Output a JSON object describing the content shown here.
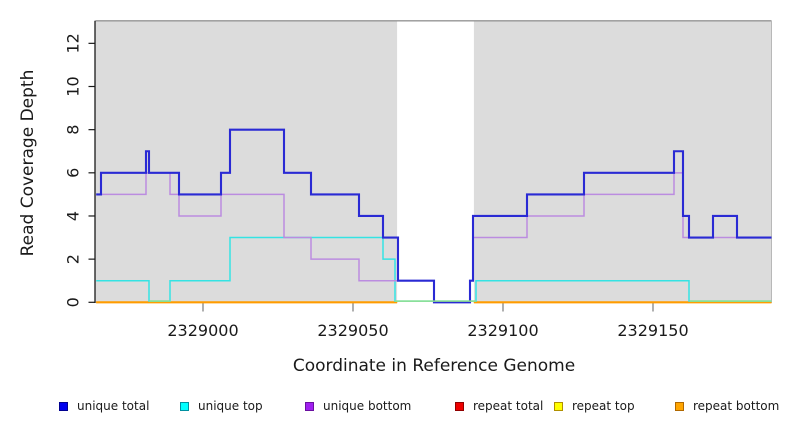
{
  "chart_data": {
    "type": "line",
    "subtype": "step-coverage-plot",
    "title": "",
    "xlabel": "Coordinate in Reference Genome",
    "ylabel": "Read Coverage Depth",
    "xlim": [
      2328964,
      2329190.7
    ],
    "ylim": [
      0,
      13
    ],
    "grid": false,
    "plot_background": "#dcdcdc",
    "top_border_color": "#949494",
    "right_border_color": "#b8b8b8",
    "axis_color": "#1a1a1a",
    "x_tick_color": "#7a7a7a",
    "x_ticks": [
      2329000,
      2329050,
      2329100,
      2329150
    ],
    "x_tick_labels": [
      "2329000",
      "2329050",
      "2329100",
      "2329150"
    ],
    "y_ticks": [
      0,
      2,
      4,
      6,
      8,
      10,
      12
    ],
    "y_tick_labels": [
      "0",
      "2",
      "4",
      "6",
      "8",
      "10",
      "12"
    ],
    "gap_region": {
      "start": 2329064.7,
      "end": 2329090.3,
      "color": "#ffffff"
    },
    "zero_overlap_color": "#8fdf8f",
    "zero_overlap_segments": [
      [
        2328982,
        2328989.2
      ],
      [
        2329064,
        2329091
      ],
      [
        2329162.1,
        2329190.7
      ]
    ],
    "series": [
      {
        "name": "repeat total",
        "color": "#dd0000",
        "width": 1.5,
        "hidden_in_gap": true,
        "steps": [
          [
            2328964,
            0
          ],
          [
            2329190.7,
            0
          ]
        ]
      },
      {
        "name": "repeat top",
        "color": "#f2f200",
        "width": 1.5,
        "hidden_in_gap": true,
        "steps": [
          [
            2328964,
            0
          ],
          [
            2329190.7,
            0
          ]
        ]
      },
      {
        "name": "repeat bottom",
        "color": "#ff9c00",
        "width": 2.2,
        "hidden_in_gap": true,
        "steps": [
          [
            2328964,
            0
          ],
          [
            2329190.7,
            0
          ]
        ]
      },
      {
        "name": "unique top",
        "color": "#35e3e3",
        "width": 1.5,
        "zero_lift": true,
        "steps": [
          [
            2328964,
            1
          ],
          [
            2328982,
            0
          ],
          [
            2328989,
            1
          ],
          [
            2329009,
            3
          ],
          [
            2329060,
            2
          ],
          [
            2329064,
            0
          ],
          [
            2329091,
            1
          ],
          [
            2329162,
            0
          ],
          [
            2329190.7,
            0
          ]
        ]
      },
      {
        "name": "unique bottom",
        "color": "#bb8ce0",
        "width": 1.5,
        "steps": [
          [
            2328964,
            5
          ],
          [
            2328981,
            6
          ],
          [
            2328989,
            5
          ],
          [
            2328992,
            4
          ],
          [
            2329006,
            5
          ],
          [
            2329027,
            3
          ],
          [
            2329036,
            2
          ],
          [
            2329052,
            1
          ],
          [
            2329077,
            0
          ],
          [
            2329089,
            1
          ],
          [
            2329090,
            3
          ],
          [
            2329108,
            4
          ],
          [
            2329127,
            5
          ],
          [
            2329157,
            6
          ],
          [
            2329160,
            3
          ],
          [
            2329190.7,
            3
          ]
        ]
      },
      {
        "name": "unique total",
        "color": "#2a2ad4",
        "width": 2.1,
        "steps": [
          [
            2328964,
            5
          ],
          [
            2328966,
            6
          ],
          [
            2328981,
            7
          ],
          [
            2328982,
            6
          ],
          [
            2328992,
            5
          ],
          [
            2329006,
            6
          ],
          [
            2329009,
            8
          ],
          [
            2329027,
            6
          ],
          [
            2329036,
            5
          ],
          [
            2329052,
            4
          ],
          [
            2329060,
            3
          ],
          [
            2329065,
            1
          ],
          [
            2329077,
            0
          ],
          [
            2329089,
            1
          ],
          [
            2329090,
            4
          ],
          [
            2329108,
            5
          ],
          [
            2329127,
            6
          ],
          [
            2329157,
            7
          ],
          [
            2329160,
            4
          ],
          [
            2329162,
            3
          ],
          [
            2329170,
            4
          ],
          [
            2329178,
            3
          ],
          [
            2329190.7,
            3
          ]
        ]
      }
    ],
    "legend": {
      "items": [
        {
          "label": "unique total",
          "color": "#0000ee",
          "border": "#000090",
          "x": 59
        },
        {
          "label": "unique top",
          "color": "#00ffff",
          "border": "#0090a0",
          "x": 180
        },
        {
          "label": "unique bottom",
          "color": "#a020f0",
          "border": "#6a10a0",
          "x": 305
        },
        {
          "label": "repeat total",
          "color": "#ee0000",
          "border": "#900000",
          "x": 455
        },
        {
          "label": "repeat top",
          "color": "#ffff00",
          "border": "#b09000",
          "x": 554
        },
        {
          "label": "repeat bottom",
          "color": "#ffa500",
          "border": "#b06800",
          "x": 675
        }
      ],
      "y": 400
    }
  }
}
